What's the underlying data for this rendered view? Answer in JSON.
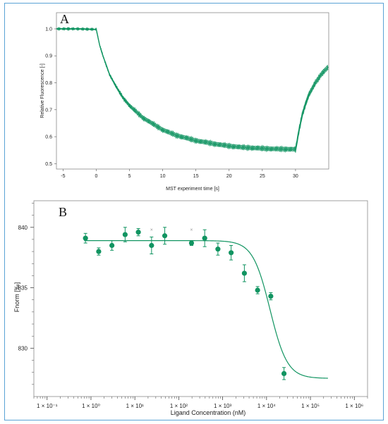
{
  "chart_data": [
    {
      "type": "line",
      "panel_label": "A",
      "xlabel": "MST experiment time [s]",
      "ylabel": "Relative Fluorescence [-]",
      "xlim": [
        -6,
        35
      ],
      "ylim": [
        0.48,
        1.06
      ],
      "x_ticks": [
        "-5",
        "0",
        "5",
        "10",
        "15",
        "20",
        "25",
        "30"
      ],
      "y_ticks": [
        "0.5",
        "0.6",
        "0.7",
        "0.8",
        "0.9",
        "1.0"
      ],
      "color": "#119461",
      "series": [
        {
          "x": [
            -6,
            -3,
            0,
            0.5,
            1,
            2,
            3,
            4,
            5,
            7,
            10,
            12,
            15,
            18,
            20,
            22,
            25,
            27,
            29.9,
            30,
            30.5,
            31,
            31.5,
            32,
            33,
            34,
            35
          ],
          "y": [
            1.0,
            1.0,
            0.998,
            0.94,
            0.9,
            0.83,
            0.785,
            0.745,
            0.715,
            0.67,
            0.625,
            0.605,
            0.585,
            0.572,
            0.565,
            0.56,
            0.556,
            0.554,
            0.553,
            0.55,
            0.62,
            0.68,
            0.72,
            0.755,
            0.8,
            0.835,
            0.86
          ]
        }
      ]
    },
    {
      "type": "scatter",
      "panel_label": "B",
      "xlabel": "Ligand Concentration (nM)",
      "ylabel": "Fnorm [‰]",
      "xscale": "log",
      "xlim": [
        0.05,
        2000000
      ],
      "ylim": [
        826,
        842.2
      ],
      "x_ticks": [
        "1 × 10⁻¹",
        "1 × 10⁰",
        "1 × 10¹",
        "1 × 10²",
        "1 × 10³",
        "1 × 10⁴",
        "1 × 10⁵",
        "1 × 10⁶"
      ],
      "y_ticks": [
        "830",
        "835",
        "840"
      ],
      "color": "#119461",
      "points": [
        {
          "x": 0.75,
          "y": 839.1,
          "err": 0.4
        },
        {
          "x": 1.5,
          "y": 838.0,
          "err": 0.3
        },
        {
          "x": 3.0,
          "y": 838.5,
          "err": 0.4
        },
        {
          "x": 6.0,
          "y": 839.4,
          "err": 0.6
        },
        {
          "x": 12,
          "y": 839.6,
          "err": 0.3
        },
        {
          "x": 24,
          "y": 838.5,
          "err": 0.7
        },
        {
          "x": 48,
          "y": 839.3,
          "err": 0.7
        },
        {
          "x": 195,
          "y": 838.7,
          "err": 0.2
        },
        {
          "x": 390,
          "y": 839.1,
          "err": 0.7
        },
        {
          "x": 780,
          "y": 838.2,
          "err": 0.5
        },
        {
          "x": 1560,
          "y": 837.9,
          "err": 0.6
        },
        {
          "x": 3125,
          "y": 836.2,
          "err": 0.7
        },
        {
          "x": 6250,
          "y": 834.8,
          "err": 0.3
        },
        {
          "x": 12500,
          "y": 834.3,
          "err": 0.3
        },
        {
          "x": 25000,
          "y": 827.9,
          "err": 0.5
        }
      ],
      "outliers": [
        {
          "x": 24,
          "y": 839.8
        },
        {
          "x": 195,
          "y": 839.8
        }
      ],
      "fit": {
        "bottom": 827.5,
        "top": 838.9,
        "kd": 12000,
        "hill": 2.2,
        "x_range": [
          0.7,
          250000
        ]
      }
    }
  ]
}
